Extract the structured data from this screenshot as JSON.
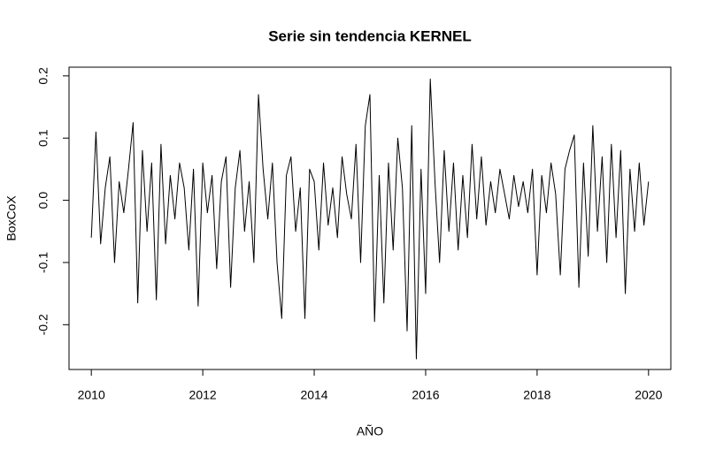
{
  "chart_data": {
    "type": "line",
    "title": "Serie sin tendencia KERNEL",
    "xlabel": "AÑO",
    "ylabel": "BoxCoX",
    "color": "#000000",
    "xlim": [
      2009.6,
      2020.4
    ],
    "xticks": [
      2010,
      2012,
      2014,
      2016,
      2018,
      2020
    ],
    "ylim": [
      -0.272,
      0.214
    ],
    "yticks": [
      -0.2,
      -0.1,
      {
        "value": 0,
        "label": "0.0"
      },
      0.1,
      0.2
    ],
    "x": [
      2010,
      2010.083,
      2010.167,
      2010.25,
      2010.333,
      2010.417,
      2010.5,
      2010.583,
      2010.667,
      2010.75,
      2010.833,
      2010.917,
      2011,
      2011.083,
      2011.167,
      2011.25,
      2011.333,
      2011.417,
      2011.5,
      2011.583,
      2011.667,
      2011.75,
      2011.833,
      2011.917,
      2012,
      2012.083,
      2012.167,
      2012.25,
      2012.333,
      2012.417,
      2012.5,
      2012.583,
      2012.667,
      2012.75,
      2012.833,
      2012.917,
      2013,
      2013.083,
      2013.167,
      2013.25,
      2013.333,
      2013.417,
      2013.5,
      2013.583,
      2013.667,
      2013.75,
      2013.833,
      2013.917,
      2014,
      2014.083,
      2014.167,
      2014.25,
      2014.333,
      2014.417,
      2014.5,
      2014.583,
      2014.667,
      2014.75,
      2014.833,
      2014.917,
      2015,
      2015.083,
      2015.167,
      2015.25,
      2015.333,
      2015.417,
      2015.5,
      2015.583,
      2015.667,
      2015.75,
      2015.833,
      2015.917,
      2016,
      2016.083,
      2016.167,
      2016.25,
      2016.333,
      2016.417,
      2016.5,
      2016.583,
      2016.667,
      2016.75,
      2016.833,
      2016.917,
      2017,
      2017.083,
      2017.167,
      2017.25,
      2017.333,
      2017.417,
      2017.5,
      2017.583,
      2017.667,
      2017.75,
      2017.833,
      2017.917,
      2018,
      2018.083,
      2018.167,
      2018.25,
      2018.333,
      2018.417,
      2018.5,
      2018.583,
      2018.667,
      2018.75,
      2018.833,
      2018.917,
      2019,
      2019.083,
      2019.167,
      2019.25,
      2019.333,
      2019.417,
      2019.5,
      2019.583,
      2019.667,
      2019.75,
      2019.833,
      2019.917,
      2020
    ],
    "values": [
      -0.06,
      0.11,
      -0.07,
      0.02,
      0.07,
      -0.1,
      0.03,
      -0.02,
      0.05,
      0.125,
      -0.165,
      0.08,
      -0.05,
      0.06,
      -0.16,
      0.09,
      -0.07,
      0.04,
      -0.03,
      0.06,
      0.02,
      -0.08,
      0.05,
      -0.17,
      0.06,
      -0.02,
      0.04,
      -0.11,
      0.03,
      0.07,
      -0.14,
      0.02,
      0.08,
      -0.05,
      0.03,
      -0.1,
      0.17,
      0.05,
      -0.03,
      0.06,
      -0.1,
      -0.19,
      0.04,
      0.07,
      -0.05,
      0.02,
      -0.19,
      0.05,
      0.03,
      -0.08,
      0.06,
      -0.04,
      0.02,
      -0.06,
      0.07,
      0.01,
      -0.03,
      0.09,
      -0.1,
      0.12,
      0.17,
      -0.195,
      0.04,
      -0.165,
      0.06,
      -0.08,
      0.1,
      0.02,
      -0.21,
      0.12,
      -0.255,
      0.05,
      -0.15,
      0.195,
      0.03,
      -0.1,
      0.08,
      -0.05,
      0.06,
      -0.08,
      0.04,
      -0.06,
      0.09,
      -0.03,
      0.07,
      -0.04,
      0.03,
      -0.02,
      0.05,
      0.01,
      -0.03,
      0.04,
      -0.01,
      0.03,
      -0.02,
      0.05,
      -0.12,
      0.04,
      -0.02,
      0.06,
      0.01,
      -0.12,
      0.05,
      0.08,
      0.105,
      -0.14,
      0.06,
      -0.09,
      0.12,
      -0.05,
      0.07,
      -0.1,
      0.09,
      -0.06,
      0.08,
      -0.15,
      0.05,
      -0.05,
      0.06,
      -0.04,
      0.03
    ]
  }
}
